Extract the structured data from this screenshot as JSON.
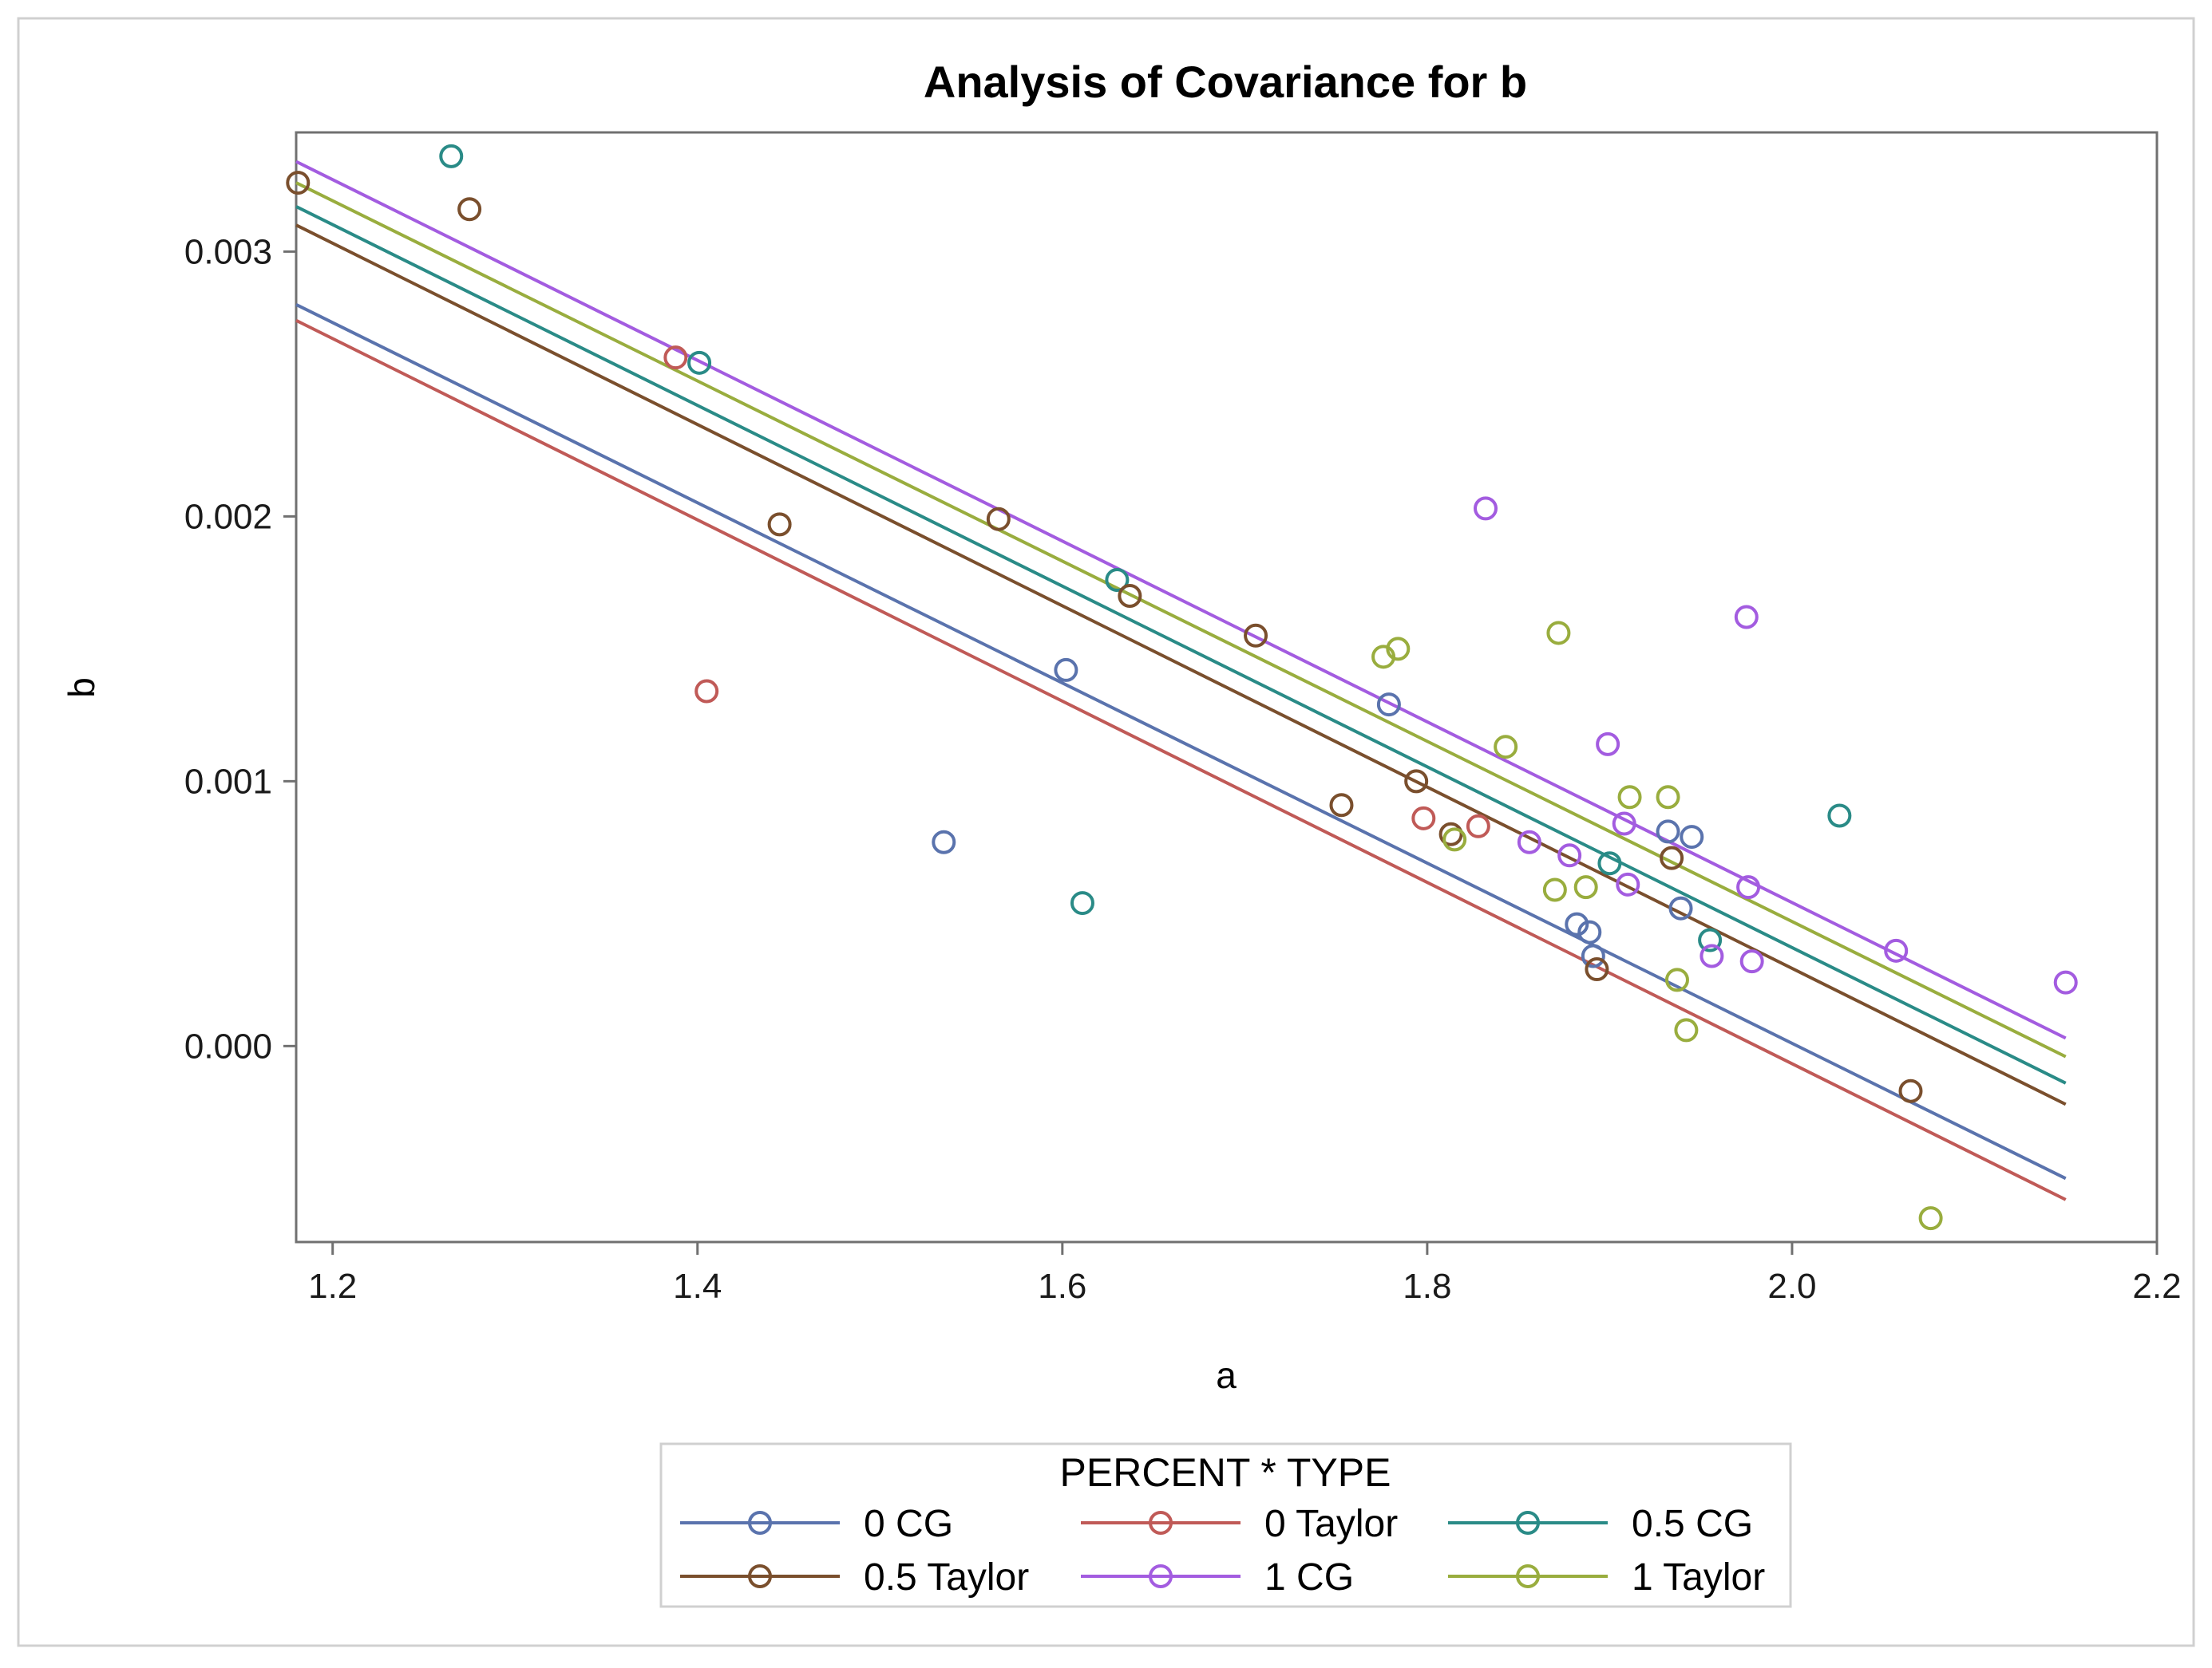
{
  "chart_data": {
    "type": "scatter",
    "title": "Analysis of Covariance for b",
    "xlabel": "a",
    "ylabel": "b",
    "xlim": [
      1.18,
      2.2
    ],
    "ylim": [
      -0.00074,
      0.00345
    ],
    "xticks": [
      1.2,
      1.4,
      1.6,
      1.8,
      2.0,
      2.2
    ],
    "xtick_labels": [
      "1.2",
      "1.4",
      "1.6",
      "1.8",
      "2.0",
      "2.2"
    ],
    "yticks": [
      0.0,
      0.001,
      0.002,
      0.003
    ],
    "ytick_labels": [
      "0.000",
      "0.001",
      "0.002",
      "0.003"
    ],
    "grid": false,
    "legend": {
      "title": "PERCENT * TYPE",
      "position": "bottom",
      "columns": 3
    },
    "series": [
      {
        "name": "0 CG",
        "color": "#5a73ad",
        "fit_line": {
          "x": [
            1.18,
            2.15
          ],
          "y": [
            0.0028,
            -0.0005
          ]
        },
        "points": [
          {
            "x": 1.535,
            "y": 0.00077
          },
          {
            "x": 1.602,
            "y": 0.00142
          },
          {
            "x": 1.779,
            "y": 0.00129
          },
          {
            "x": 1.882,
            "y": 0.00046
          },
          {
            "x": 1.889,
            "y": 0.00043
          },
          {
            "x": 1.891,
            "y": 0.00034
          },
          {
            "x": 1.932,
            "y": 0.00081
          },
          {
            "x": 1.939,
            "y": 0.00052
          },
          {
            "x": 1.945,
            "y": 0.00079
          }
        ]
      },
      {
        "name": "0 Taylor",
        "color": "#c05a57",
        "fit_line": {
          "x": [
            1.18,
            2.15
          ],
          "y": [
            0.00274,
            -0.00058
          ]
        },
        "points": [
          {
            "x": 1.388,
            "y": 0.0026
          },
          {
            "x": 1.405,
            "y": 0.00134
          },
          {
            "x": 1.798,
            "y": 0.00086
          },
          {
            "x": 1.828,
            "y": 0.00083
          }
        ]
      },
      {
        "name": "0.5 CG",
        "color": "#2a8b87",
        "fit_line": {
          "x": [
            1.18,
            2.15
          ],
          "y": [
            0.00317,
            -0.00014
          ]
        },
        "points": [
          {
            "x": 1.265,
            "y": 0.00336
          },
          {
            "x": 1.401,
            "y": 0.00258
          },
          {
            "x": 1.611,
            "y": 0.00054
          },
          {
            "x": 1.63,
            "y": 0.00176
          },
          {
            "x": 1.9,
            "y": 0.00069
          },
          {
            "x": 1.955,
            "y": 0.0004
          },
          {
            "x": 2.026,
            "y": 0.00087
          }
        ]
      },
      {
        "name": "0.5 Taylor",
        "color": "#7a4f2d",
        "fit_line": {
          "x": [
            1.18,
            2.15
          ],
          "y": [
            0.0031,
            -0.00022
          ]
        },
        "points": [
          {
            "x": 1.181,
            "y": 0.00326
          },
          {
            "x": 1.275,
            "y": 0.00316
          },
          {
            "x": 1.445,
            "y": 0.00197
          },
          {
            "x": 1.565,
            "y": 0.00199
          },
          {
            "x": 1.637,
            "y": 0.0017
          },
          {
            "x": 1.706,
            "y": 0.00155
          },
          {
            "x": 1.753,
            "y": 0.00091
          },
          {
            "x": 1.794,
            "y": 0.001
          },
          {
            "x": 1.813,
            "y": 0.0008
          },
          {
            "x": 1.893,
            "y": 0.00029
          },
          {
            "x": 1.934,
            "y": 0.00071
          },
          {
            "x": 2.065,
            "y": -0.00017
          }
        ]
      },
      {
        "name": "1 CG",
        "color": "#a35ce0",
        "fit_line": {
          "x": [
            1.18,
            2.15
          ],
          "y": [
            0.00334,
            3e-05
          ]
        },
        "points": [
          {
            "x": 1.832,
            "y": 0.00203
          },
          {
            "x": 1.856,
            "y": 0.00077
          },
          {
            "x": 1.878,
            "y": 0.00072
          },
          {
            "x": 1.899,
            "y": 0.00114
          },
          {
            "x": 1.908,
            "y": 0.00084
          },
          {
            "x": 1.91,
            "y": 0.00061
          },
          {
            "x": 1.956,
            "y": 0.00034
          },
          {
            "x": 1.975,
            "y": 0.00162
          },
          {
            "x": 1.976,
            "y": 0.0006
          },
          {
            "x": 1.978,
            "y": 0.00032
          },
          {
            "x": 2.057,
            "y": 0.00036
          },
          {
            "x": 2.15,
            "y": 0.00024
          }
        ]
      },
      {
        "name": "1 Taylor",
        "color": "#99ad3e",
        "fit_line": {
          "x": [
            1.18,
            2.15
          ],
          "y": [
            0.00326,
            -4e-05
          ]
        },
        "points": [
          {
            "x": 1.776,
            "y": 0.00147
          },
          {
            "x": 1.784,
            "y": 0.0015
          },
          {
            "x": 1.815,
            "y": 0.00078
          },
          {
            "x": 1.843,
            "y": 0.00113
          },
          {
            "x": 1.87,
            "y": 0.00059
          },
          {
            "x": 1.872,
            "y": 0.00156
          },
          {
            "x": 1.887,
            "y": 0.0006
          },
          {
            "x": 1.911,
            "y": 0.00094
          },
          {
            "x": 1.932,
            "y": 0.00094
          },
          {
            "x": 1.937,
            "y": 0.00025
          },
          {
            "x": 1.942,
            "y": 6e-05
          },
          {
            "x": 2.076,
            "y": -0.00065
          }
        ]
      }
    ]
  }
}
